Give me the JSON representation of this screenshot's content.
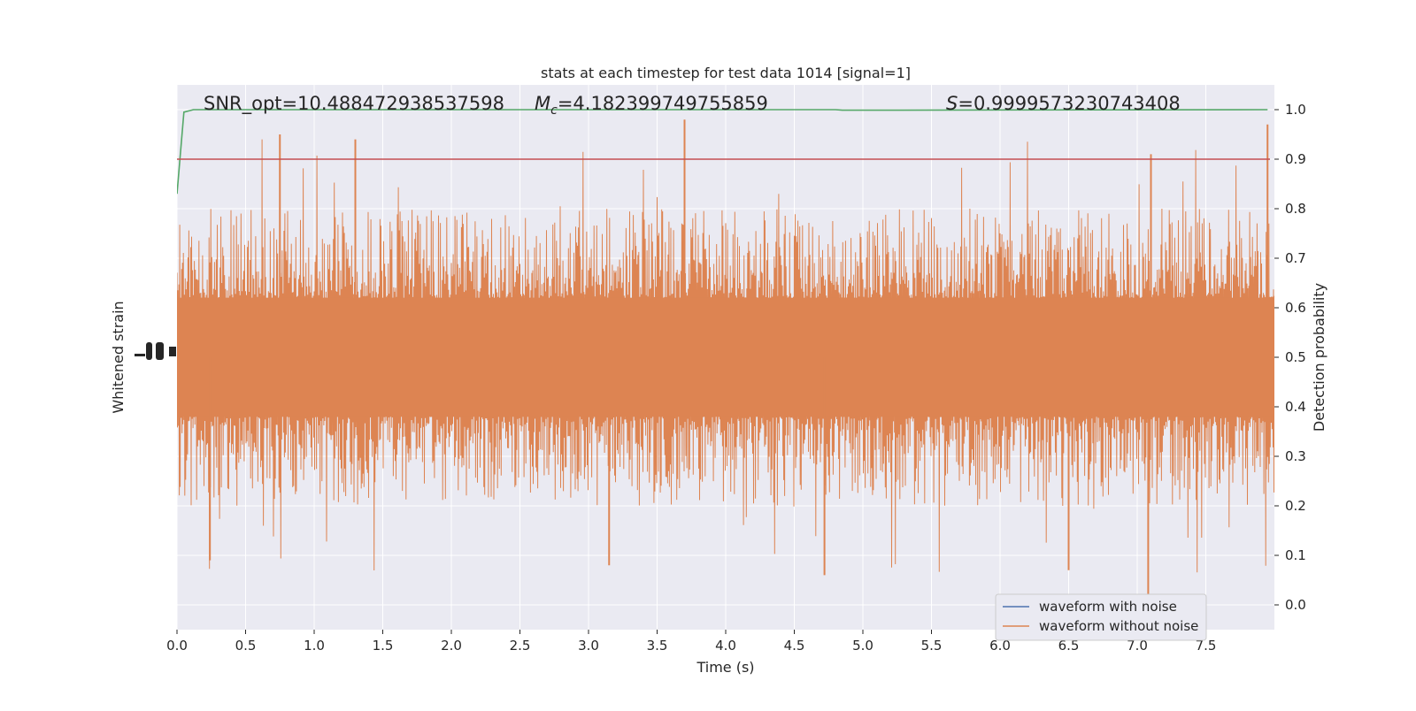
{
  "chart_data": {
    "type": "line",
    "title": "stats at each timestep for test data 1014 [signal=1]",
    "xlabel": "Time (s)",
    "ylabel_left": "Whitened strain",
    "ylabel_right": "Detection probability",
    "xlim": [
      0.0,
      8.0
    ],
    "ylim_right": [
      -0.05,
      1.05
    ],
    "grid": true,
    "background": "#eaeaf2",
    "legend_placement": "lower-right",
    "x_ticks": [
      "0.0",
      "0.5",
      "1.0",
      "1.5",
      "2.0",
      "2.5",
      "3.0",
      "3.5",
      "4.0",
      "4.5",
      "5.0",
      "5.5",
      "6.0",
      "6.5",
      "7.0",
      "7.5"
    ],
    "y_right_ticks": [
      "0.0",
      "0.1",
      "0.2",
      "0.3",
      "0.4",
      "0.5",
      "0.6",
      "0.7",
      "0.8",
      "0.9",
      "1.0"
    ],
    "annotations": {
      "snr": "SNR_opt=10.488472938537598",
      "mc_symbol": "M",
      "mc_sub": "c",
      "mc_value": "=4.182399749755859",
      "s_symbol": "S",
      "s_value": "=0.9999573230743408"
    },
    "series": [
      {
        "name": "waveform with noise",
        "color": "#4c72b0",
        "center": 0.5,
        "band": [
          0.4,
          0.6
        ],
        "peaks_high": [
          0.95,
          0.94,
          0.98,
          0.91,
          0.97
        ],
        "peaks_low": [
          0.08,
          0.06,
          0.02,
          0.1
        ]
      },
      {
        "name": "waveform without noise",
        "color": "#dd8452",
        "center": 0.5
      },
      {
        "color": "#55a868",
        "start": 0.83,
        "plateau": 1.0
      },
      {
        "color": "#c44e52",
        "value": 0.9
      }
    ],
    "colors": {
      "noise": "#4c72b0",
      "clean": "#dd8452",
      "detection": "#55a868",
      "threshold": "#c44e52"
    }
  }
}
